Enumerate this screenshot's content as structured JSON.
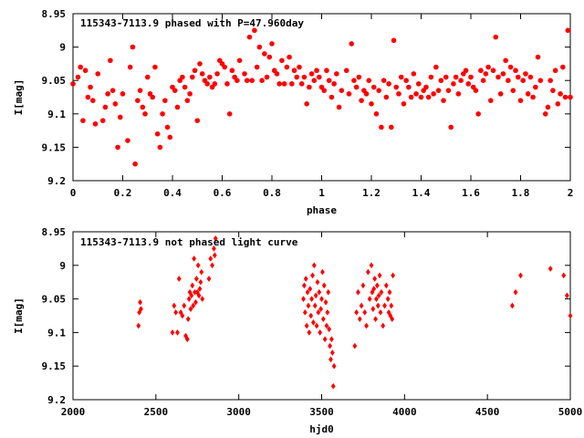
{
  "chart_data": [
    {
      "type": "scatter",
      "title": "115343-7113.9 phased with P=47.960day",
      "xlabel": "phase",
      "ylabel": "I[mag]",
      "xlim": [
        0,
        2
      ],
      "ylim": [
        9.2,
        8.95
      ],
      "y_reversed": true,
      "grid": false,
      "marker_color": "#ff0000",
      "marker": "filled-circle",
      "x_ticks": [
        "0",
        "0.2",
        "0.4",
        "0.6",
        "0.8",
        "1",
        "1.2",
        "1.4",
        "1.6",
        "1.8",
        "2"
      ],
      "x_tick_values": [
        0,
        0.2,
        0.4,
        0.6,
        0.8,
        1.0,
        1.2,
        1.4,
        1.6,
        1.8,
        2.0
      ],
      "y_ticks": [
        "8.95",
        "9",
        "9.05",
        "9.1",
        "9.15",
        "9.2"
      ],
      "y_tick_values": [
        8.95,
        9.0,
        9.05,
        9.1,
        9.15,
        9.2
      ],
      "points": [
        [
          0.0,
          9.055
        ],
        [
          0.02,
          9.045
        ],
        [
          0.03,
          9.03
        ],
        [
          0.04,
          9.11
        ],
        [
          0.05,
          9.035
        ],
        [
          0.06,
          9.075
        ],
        [
          0.07,
          9.06
        ],
        [
          0.08,
          9.08
        ],
        [
          0.09,
          9.115
        ],
        [
          0.1,
          9.04
        ],
        [
          0.12,
          9.11
        ],
        [
          0.13,
          9.09
        ],
        [
          0.14,
          9.07
        ],
        [
          0.15,
          9.02
        ],
        [
          0.16,
          9.065
        ],
        [
          0.17,
          9.085
        ],
        [
          0.18,
          9.15
        ],
        [
          0.19,
          9.105
        ],
        [
          0.2,
          9.07
        ],
        [
          0.22,
          9.14
        ],
        [
          0.23,
          9.03
        ],
        [
          0.24,
          9.0
        ],
        [
          0.25,
          9.175
        ],
        [
          0.26,
          9.08
        ],
        [
          0.27,
          9.065
        ],
        [
          0.28,
          9.09
        ],
        [
          0.29,
          9.1
        ],
        [
          0.3,
          9.045
        ],
        [
          0.31,
          9.07
        ],
        [
          0.32,
          9.075
        ],
        [
          0.33,
          9.03
        ],
        [
          0.34,
          9.13
        ],
        [
          0.35,
          9.15
        ],
        [
          0.36,
          9.1
        ],
        [
          0.37,
          9.08
        ],
        [
          0.38,
          9.12
        ],
        [
          0.39,
          9.135
        ],
        [
          0.4,
          9.06
        ],
        [
          0.41,
          9.065
        ],
        [
          0.42,
          9.09
        ],
        [
          0.43,
          9.05
        ],
        [
          0.44,
          9.045
        ],
        [
          0.45,
          9.06
        ],
        [
          0.46,
          9.08
        ],
        [
          0.47,
          9.07
        ],
        [
          0.48,
          9.045
        ],
        [
          0.49,
          9.035
        ],
        [
          0.5,
          9.11
        ],
        [
          0.51,
          9.025
        ],
        [
          0.52,
          9.04
        ],
        [
          0.53,
          9.05
        ],
        [
          0.54,
          9.055
        ],
        [
          0.55,
          9.045
        ],
        [
          0.56,
          9.06
        ],
        [
          0.57,
          9.055
        ],
        [
          0.58,
          9.04
        ],
        [
          0.59,
          9.02
        ],
        [
          0.6,
          9.025
        ],
        [
          0.61,
          9.03
        ],
        [
          0.62,
          9.055
        ],
        [
          0.63,
          9.1
        ],
        [
          0.64,
          9.035
        ],
        [
          0.65,
          9.045
        ],
        [
          0.66,
          9.05
        ],
        [
          0.67,
          9.02
        ],
        [
          0.69,
          9.04
        ],
        [
          0.7,
          9.05
        ],
        [
          0.71,
          8.985
        ],
        [
          0.72,
          9.05
        ],
        [
          0.73,
          8.975
        ],
        [
          0.74,
          9.03
        ],
        [
          0.75,
          9.0
        ],
        [
          0.76,
          9.05
        ],
        [
          0.77,
          9.01
        ],
        [
          0.78,
          9.045
        ],
        [
          0.79,
          9.015
        ],
        [
          0.8,
          8.995
        ],
        [
          0.81,
          9.035
        ],
        [
          0.82,
          9.04
        ],
        [
          0.83,
          9.055
        ],
        [
          0.84,
          9.02
        ],
        [
          0.85,
          9.055
        ],
        [
          0.86,
          9.03
        ],
        [
          0.87,
          9.015
        ],
        [
          0.88,
          9.055
        ],
        [
          0.89,
          9.035
        ],
        [
          0.9,
          9.045
        ],
        [
          0.91,
          9.03
        ],
        [
          0.92,
          9.055
        ],
        [
          0.93,
          9.045
        ],
        [
          0.94,
          9.085
        ],
        [
          0.95,
          9.06
        ],
        [
          0.96,
          9.04
        ],
        [
          0.97,
          9.05
        ],
        [
          0.98,
          9.035
        ],
        [
          0.99,
          9.045
        ],
        [
          1.0,
          9.06
        ],
        [
          1.01,
          9.065
        ],
        [
          1.02,
          9.035
        ],
        [
          1.03,
          9.05
        ],
        [
          1.04,
          9.075
        ],
        [
          1.05,
          9.055
        ],
        [
          1.06,
          9.04
        ],
        [
          1.07,
          9.09
        ],
        [
          1.08,
          9.065
        ],
        [
          1.1,
          9.035
        ],
        [
          1.11,
          9.07
        ],
        [
          1.12,
          8.995
        ],
        [
          1.13,
          9.05
        ],
        [
          1.14,
          9.06
        ],
        [
          1.15,
          9.045
        ],
        [
          1.16,
          9.08
        ],
        [
          1.17,
          9.065
        ],
        [
          1.18,
          9.07
        ],
        [
          1.19,
          9.05
        ],
        [
          1.2,
          9.085
        ],
        [
          1.21,
          9.06
        ],
        [
          1.22,
          9.1
        ],
        [
          1.23,
          9.065
        ],
        [
          1.24,
          9.12
        ],
        [
          1.25,
          9.05
        ],
        [
          1.26,
          9.075
        ],
        [
          1.27,
          9.055
        ],
        [
          1.28,
          9.12
        ],
        [
          1.29,
          8.99
        ],
        [
          1.3,
          9.06
        ],
        [
          1.31,
          9.07
        ],
        [
          1.32,
          9.045
        ],
        [
          1.33,
          9.085
        ],
        [
          1.34,
          9.05
        ],
        [
          1.35,
          9.06
        ],
        [
          1.36,
          9.075
        ],
        [
          1.37,
          9.04
        ],
        [
          1.38,
          9.07
        ],
        [
          1.39,
          9.055
        ],
        [
          1.4,
          9.075
        ],
        [
          1.41,
          9.065
        ],
        [
          1.42,
          9.06
        ],
        [
          1.43,
          9.075
        ],
        [
          1.44,
          9.045
        ],
        [
          1.45,
          9.07
        ],
        [
          1.46,
          9.03
        ],
        [
          1.47,
          9.065
        ],
        [
          1.48,
          9.05
        ],
        [
          1.49,
          9.08
        ],
        [
          1.5,
          9.045
        ],
        [
          1.51,
          9.065
        ],
        [
          1.52,
          9.12
        ],
        [
          1.53,
          9.055
        ],
        [
          1.54,
          9.045
        ],
        [
          1.55,
          9.07
        ],
        [
          1.56,
          9.05
        ],
        [
          1.57,
          9.04
        ],
        [
          1.58,
          9.035
        ],
        [
          1.59,
          9.055
        ],
        [
          1.6,
          9.045
        ],
        [
          1.61,
          9.06
        ],
        [
          1.62,
          9.065
        ],
        [
          1.63,
          9.1
        ],
        [
          1.64,
          9.035
        ],
        [
          1.65,
          9.05
        ],
        [
          1.66,
          9.04
        ],
        [
          1.67,
          9.03
        ],
        [
          1.68,
          9.08
        ],
        [
          1.69,
          9.035
        ],
        [
          1.7,
          8.985
        ],
        [
          1.71,
          9.045
        ],
        [
          1.72,
          9.07
        ],
        [
          1.73,
          9.04
        ],
        [
          1.74,
          9.02
        ],
        [
          1.75,
          9.05
        ],
        [
          1.76,
          9.03
        ],
        [
          1.77,
          9.065
        ],
        [
          1.78,
          9.035
        ],
        [
          1.79,
          9.045
        ],
        [
          1.8,
          9.08
        ],
        [
          1.81,
          9.05
        ],
        [
          1.82,
          9.04
        ],
        [
          1.83,
          9.07
        ],
        [
          1.84,
          9.045
        ],
        [
          1.85,
          9.075
        ],
        [
          1.86,
          9.06
        ],
        [
          1.87,
          9.015
        ],
        [
          1.88,
          9.05
        ],
        [
          1.9,
          9.1
        ],
        [
          1.91,
          9.09
        ],
        [
          1.92,
          9.05
        ],
        [
          1.93,
          9.065
        ],
        [
          1.94,
          9.035
        ],
        [
          1.95,
          9.085
        ],
        [
          1.96,
          9.07
        ],
        [
          1.97,
          9.03
        ],
        [
          1.98,
          9.075
        ],
        [
          1.99,
          8.975
        ],
        [
          2.0,
          9.075
        ]
      ]
    },
    {
      "type": "scatter",
      "title": "115343-7113.9 not phased light curve",
      "xlabel": "hjd0",
      "ylabel": "I[mag]",
      "xlim": [
        2000,
        5000
      ],
      "ylim": [
        9.2,
        8.95
      ],
      "y_reversed": true,
      "grid": false,
      "marker_color": "#ff0000",
      "marker": "diamond",
      "x_ticks": [
        "2000",
        "2500",
        "3000",
        "3500",
        "4000",
        "4500",
        "5000"
      ],
      "x_tick_values": [
        2000,
        2500,
        3000,
        3500,
        4000,
        4500,
        5000
      ],
      "y_ticks": [
        "8.95",
        "9",
        "9.05",
        "9.1",
        "9.15",
        "9.2"
      ],
      "y_tick_values": [
        8.95,
        9.0,
        9.05,
        9.1,
        9.15,
        9.2
      ],
      "points": [
        [
          2395,
          9.09
        ],
        [
          2400,
          9.07
        ],
        [
          2405,
          9.055
        ],
        [
          2410,
          9.065
        ],
        [
          2600,
          9.1
        ],
        [
          2610,
          9.06
        ],
        [
          2620,
          9.07
        ],
        [
          2630,
          9.1
        ],
        [
          2640,
          9.02
        ],
        [
          2650,
          9.07
        ],
        [
          2660,
          9.075
        ],
        [
          2670,
          9.06
        ],
        [
          2680,
          9.105
        ],
        [
          2690,
          9.11
        ],
        [
          2695,
          9.08
        ],
        [
          2700,
          9.05
        ],
        [
          2705,
          9.04
        ],
        [
          2710,
          9.065
        ],
        [
          2715,
          9.045
        ],
        [
          2720,
          9.03
        ],
        [
          2725,
          9.06
        ],
        [
          2730,
          8.99
        ],
        [
          2735,
          9.04
        ],
        [
          2740,
          9.055
        ],
        [
          2745,
          9.02
        ],
        [
          2750,
          9.04
        ],
        [
          2755,
          9.0
        ],
        [
          2760,
          9.045
        ],
        [
          2765,
          9.035
        ],
        [
          2770,
          9.025
        ],
        [
          2775,
          9.01
        ],
        [
          2780,
          9.05
        ],
        [
          2820,
          9.02
        ],
        [
          2830,
          8.99
        ],
        [
          2840,
          9.0
        ],
        [
          2850,
          8.975
        ],
        [
          2855,
          8.985
        ],
        [
          2860,
          8.96
        ],
        [
          3390,
          9.05
        ],
        [
          3395,
          9.03
        ],
        [
          3400,
          9.07
        ],
        [
          3405,
          9.02
        ],
        [
          3410,
          9.09
        ],
        [
          3415,
          9.04
        ],
        [
          3420,
          9.06
        ],
        [
          3425,
          9.1
        ],
        [
          3430,
          9.035
        ],
        [
          3435,
          9.075
        ],
        [
          3440,
          9.05
        ],
        [
          3445,
          9.015
        ],
        [
          3450,
          9.085
        ],
        [
          3455,
          9.0
        ],
        [
          3460,
          9.06
        ],
        [
          3465,
          9.045
        ],
        [
          3470,
          9.09
        ],
        [
          3475,
          9.025
        ],
        [
          3480,
          9.07
        ],
        [
          3485,
          9.04
        ],
        [
          3490,
          9.1
        ],
        [
          3495,
          9.065
        ],
        [
          3500,
          9.05
        ],
        [
          3505,
          9.01
        ],
        [
          3510,
          9.08
        ],
        [
          3515,
          9.03
        ],
        [
          3520,
          9.11
        ],
        [
          3525,
          9.055
        ],
        [
          3530,
          9.09
        ],
        [
          3535,
          9.07
        ],
        [
          3540,
          9.04
        ],
        [
          3545,
          9.095
        ],
        [
          3550,
          9.12
        ],
        [
          3555,
          9.14
        ],
        [
          3560,
          9.11
        ],
        [
          3565,
          9.13
        ],
        [
          3570,
          9.18
        ],
        [
          3575,
          9.15
        ],
        [
          3700,
          9.12
        ],
        [
          3710,
          9.07
        ],
        [
          3720,
          9.04
        ],
        [
          3730,
          9.08
        ],
        [
          3740,
          9.06
        ],
        [
          3750,
          9.03
        ],
        [
          3760,
          9.07
        ],
        [
          3770,
          9.09
        ],
        [
          3780,
          9.01
        ],
        [
          3790,
          9.05
        ],
        [
          3800,
          9.0
        ],
        [
          3805,
          9.04
        ],
        [
          3810,
          9.065
        ],
        [
          3815,
          9.035
        ],
        [
          3820,
          9.02
        ],
        [
          3825,
          9.08
        ],
        [
          3830,
          9.05
        ],
        [
          3835,
          9.03
        ],
        [
          3840,
          9.06
        ],
        [
          3845,
          9.045
        ],
        [
          3850,
          9.015
        ],
        [
          3855,
          9.07
        ],
        [
          3860,
          9.04
        ],
        [
          3870,
          9.09
        ],
        [
          3880,
          9.06
        ],
        [
          3890,
          9.03
        ],
        [
          3900,
          9.05
        ],
        [
          3905,
          9.07
        ],
        [
          3910,
          9.04
        ],
        [
          3915,
          9.075
        ],
        [
          3920,
          9.06
        ],
        [
          3925,
          9.08
        ],
        [
          3930,
          9.015
        ],
        [
          4650,
          9.06
        ],
        [
          4670,
          9.04
        ],
        [
          4700,
          9.015
        ],
        [
          4880,
          9.005
        ],
        [
          4960,
          9.015
        ],
        [
          4980,
          9.045
        ],
        [
          5000,
          9.075
        ]
      ]
    }
  ]
}
